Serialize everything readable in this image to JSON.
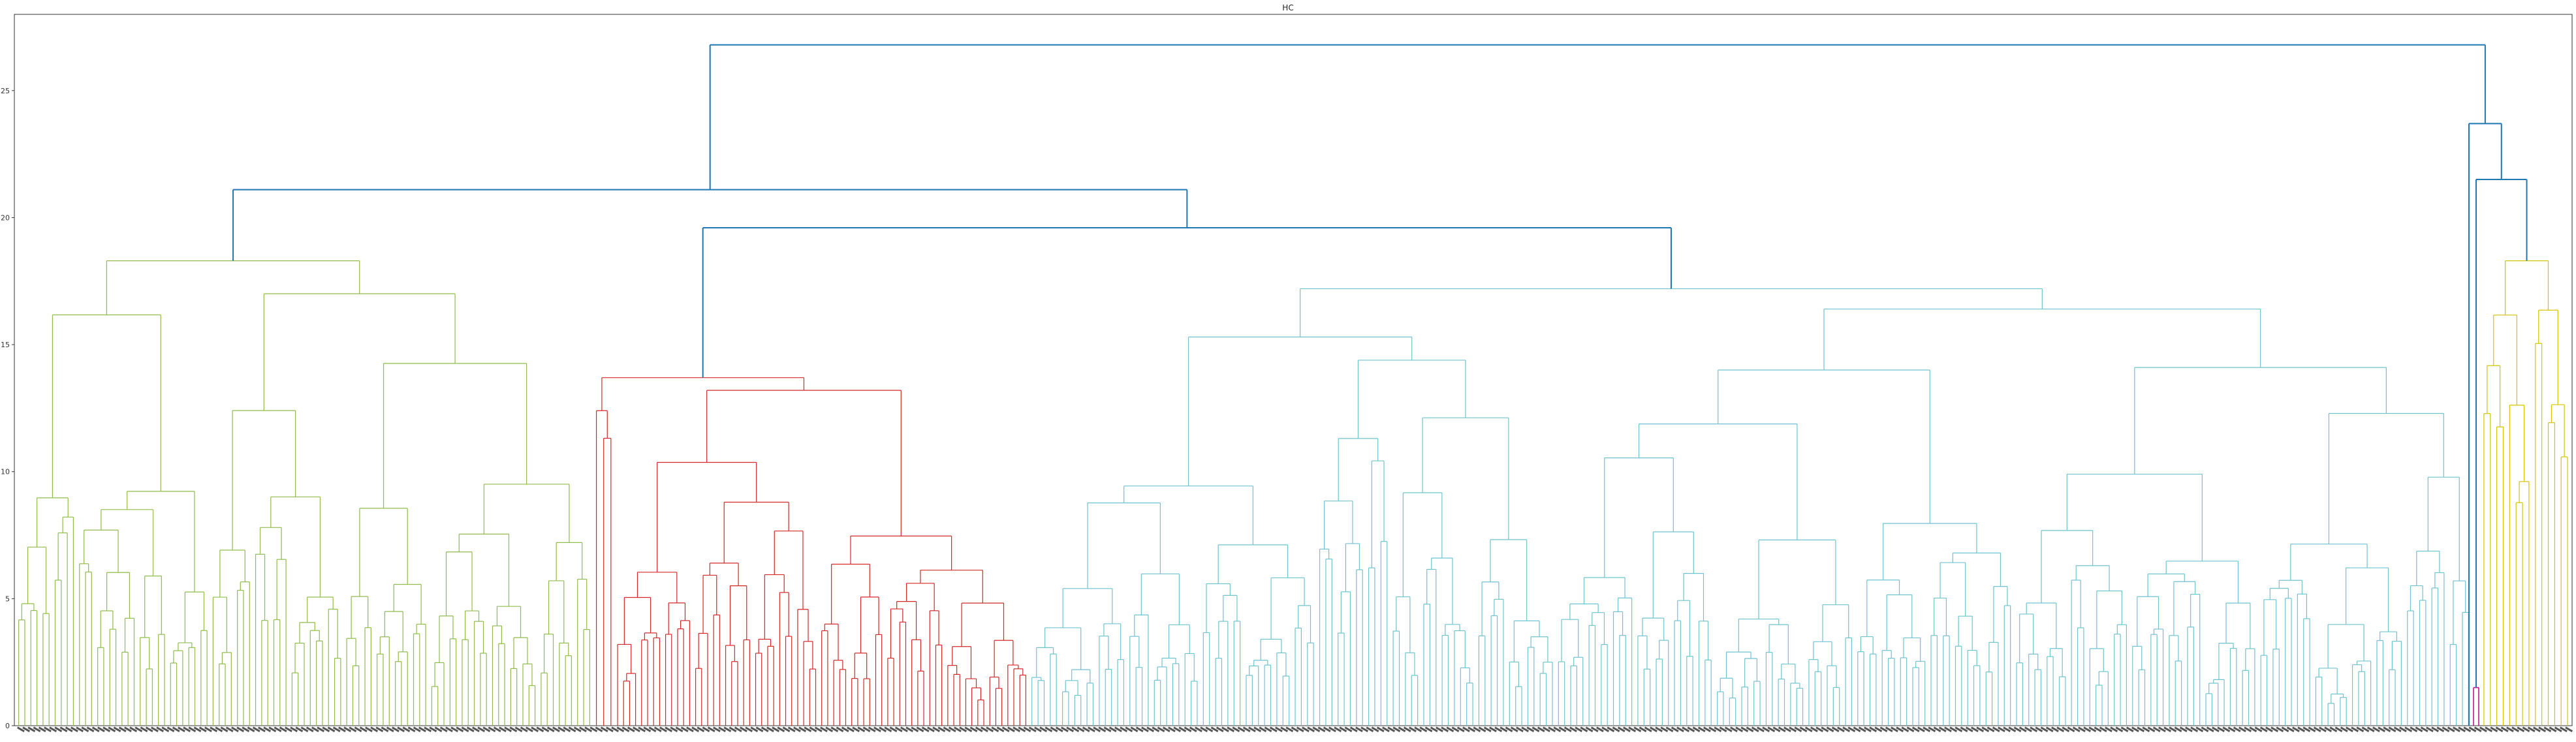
{
  "chart_data": {
    "type": "dendrogram",
    "title": "HC",
    "xlabel": "",
    "ylabel": "",
    "ylim": [
      0,
      28
    ],
    "yticks": [
      0,
      5,
      10,
      15,
      20,
      25
    ],
    "grid": false,
    "colors": {
      "link_above_threshold": "#1f77b4",
      "cluster_green": "#8fbc4a",
      "cluster_red": "#d62728",
      "cluster_cyan": "#6fc3cf",
      "cluster_magenta": "#c71585",
      "cluster_yellow": "#d4c400",
      "axis": "#333333"
    },
    "top_links": [
      {
        "left": "group_A",
        "right": "group_E",
        "height": 26.8
      },
      {
        "left": "group_G",
        "right": "group_B",
        "height": 21.1
      },
      {
        "left": "group_R",
        "right": "group_C",
        "height": 19.6
      },
      {
        "left": "group_C1",
        "right": "group_C2",
        "height": 19.6
      },
      {
        "left": "group_M",
        "right": "group_Y",
        "height": 21.5
      },
      {
        "left": "group_D",
        "right": "group_F",
        "height": 23.7
      }
    ],
    "clusters": [
      {
        "id": "green",
        "color": "cluster_green",
        "leaf_count": 95,
        "root_height": 18.3
      },
      {
        "id": "red",
        "color": "cluster_red",
        "leaf_count": 72,
        "root_height": 13.7
      },
      {
        "id": "cyan",
        "color": "cluster_cyan",
        "leaf_count": 235,
        "root_height": 17.2
      },
      {
        "id": "magenta",
        "color": "cluster_magenta",
        "leaf_count": 2,
        "root_height": 1.5
      },
      {
        "id": "yellow",
        "color": "cluster_yellow",
        "leaf_count": 14,
        "root_height": 18.3
      }
    ]
  }
}
